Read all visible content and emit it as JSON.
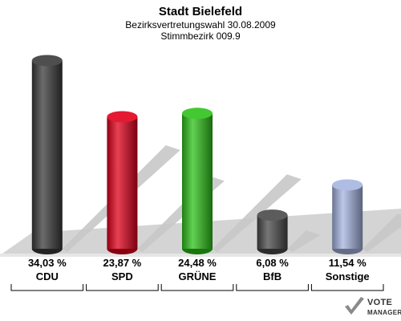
{
  "chart_data": {
    "type": "bar",
    "title": "Stadt Bielefeld",
    "subtitle": "Bezirksvertretungswahl 30.08.2009",
    "subtitle2": "Stimmbezirk 009.9",
    "categories": [
      "CDU",
      "SPD",
      "GRÜNE",
      "BfB",
      "Sonstige"
    ],
    "values": [
      34.03,
      23.87,
      24.48,
      6.08,
      11.54
    ],
    "value_labels": [
      "34,03 %",
      "23,87 %",
      "24,48 %",
      "6,08 %",
      "11,54 %"
    ],
    "colors": [
      "#3a3a3a",
      "#e0001b",
      "#2ec21a",
      "#4a4a4a",
      "#a6b4e0"
    ],
    "ylim": [
      0,
      37
    ],
    "grid": false,
    "legend": "none"
  },
  "branding": {
    "logo_line1": "VOTE",
    "logo_line2": "MANAGER"
  }
}
